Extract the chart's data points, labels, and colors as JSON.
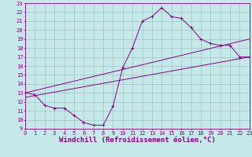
{
  "xlabel": "Windchill (Refroidissement éolien,°C)",
  "xlim": [
    0,
    23
  ],
  "ylim": [
    9,
    23
  ],
  "xticks": [
    0,
    1,
    2,
    3,
    4,
    5,
    6,
    7,
    8,
    9,
    10,
    11,
    12,
    13,
    14,
    15,
    16,
    17,
    18,
    19,
    20,
    21,
    22,
    23
  ],
  "yticks": [
    9,
    10,
    11,
    12,
    13,
    14,
    15,
    16,
    17,
    18,
    19,
    20,
    21,
    22,
    23
  ],
  "bg_color": "#c5e8e8",
  "line_color": "#880088",
  "grid_color": "#9bbaba",
  "line1_x": [
    0,
    1,
    2,
    3,
    4,
    5,
    6,
    7,
    8,
    9,
    10,
    11,
    12,
    13,
    14,
    15,
    16,
    17,
    18,
    19,
    20,
    21,
    22,
    23
  ],
  "line1_y": [
    13.0,
    12.8,
    11.6,
    11.3,
    11.3,
    10.5,
    9.7,
    9.4,
    9.4,
    11.5,
    15.8,
    18.0,
    21.0,
    21.5,
    22.5,
    21.5,
    21.3,
    20.3,
    19.0,
    18.5,
    18.3,
    18.3,
    17.0,
    17.0
  ],
  "line2_x": [
    0,
    23
  ],
  "line2_y": [
    13.0,
    19.0
  ],
  "line3_x": [
    0,
    23
  ],
  "line3_y": [
    12.5,
    17.0
  ],
  "tick_fontsize": 5.0,
  "xlabel_fontsize": 6.5,
  "linewidth": 0.7,
  "marker_size": 2.5,
  "marker_ew": 0.7
}
